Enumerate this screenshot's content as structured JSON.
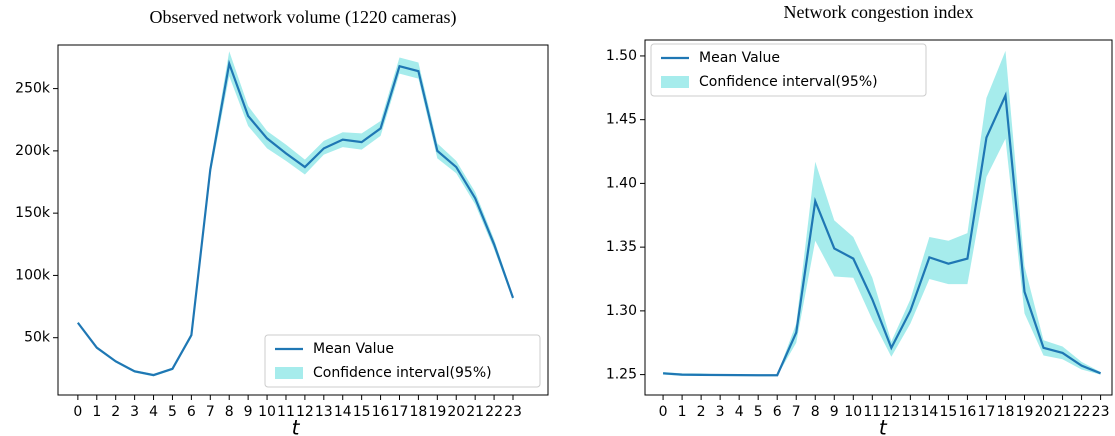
{
  "chart_data": [
    {
      "type": "line",
      "title": "Observed network volume (1220 cameras)",
      "x_label": "t",
      "x": [
        0,
        1,
        2,
        3,
        4,
        5,
        6,
        7,
        8,
        9,
        10,
        11,
        12,
        13,
        14,
        15,
        16,
        17,
        18,
        19,
        20,
        21,
        22,
        23
      ],
      "xticks": [
        0,
        1,
        2,
        3,
        4,
        5,
        6,
        7,
        8,
        9,
        10,
        11,
        12,
        13,
        14,
        15,
        16,
        17,
        18,
        19,
        20,
        21,
        22,
        23
      ],
      "xlim": [
        -1.05,
        24.85
      ],
      "ylim": [
        4000,
        285000
      ],
      "yticks": [
        {
          "value": 50000,
          "label": "50k"
        },
        {
          "value": 100000,
          "label": "100k"
        },
        {
          "value": 150000,
          "label": "150k"
        },
        {
          "value": 200000,
          "label": "200k"
        },
        {
          "value": 250000,
          "label": "250k"
        }
      ],
      "legend": "lower right",
      "series": [
        {
          "name": "Mean Value",
          "color": "#1f77b4",
          "values": [
            62000,
            42000,
            31000,
            23000,
            20000,
            25000,
            52000,
            185000,
            270000,
            228000,
            210000,
            198000,
            187000,
            202000,
            209000,
            207000,
            218000,
            268000,
            264000,
            200000,
            187000,
            162000,
            125000,
            82000
          ]
        },
        {
          "name": "Confidence interval(95%)",
          "color": "#a6ecec",
          "lower": [
            61000,
            41000,
            30000,
            22000,
            19000,
            24000,
            50000,
            180000,
            260000,
            220000,
            202000,
            192000,
            181000,
            197000,
            203000,
            201000,
            212000,
            262000,
            258000,
            194000,
            182000,
            157000,
            121000,
            80000
          ],
          "upper": [
            63000,
            43000,
            32000,
            24000,
            21000,
            26000,
            54000,
            190000,
            280000,
            236000,
            216000,
            205000,
            193000,
            208000,
            215000,
            214000,
            224000,
            275000,
            271000,
            206000,
            192000,
            167000,
            129000,
            84000
          ]
        }
      ]
    },
    {
      "type": "line",
      "title": "Network congestion index",
      "x_label": "t",
      "x": [
        0,
        1,
        2,
        3,
        4,
        5,
        6,
        7,
        8,
        9,
        10,
        11,
        12,
        13,
        14,
        15,
        16,
        17,
        18,
        19,
        20,
        21,
        22,
        23
      ],
      "xticks": [
        0,
        1,
        2,
        3,
        4,
        5,
        6,
        7,
        8,
        9,
        10,
        11,
        12,
        13,
        14,
        15,
        16,
        17,
        18,
        19,
        20,
        21,
        22,
        23
      ],
      "xlim": [
        -0.95,
        23.6
      ],
      "ylim": [
        1.234,
        1.5125
      ],
      "yticks": [
        {
          "value": 1.25,
          "label": "1.25"
        },
        {
          "value": 1.3,
          "label": "1.30"
        },
        {
          "value": 1.35,
          "label": "1.35"
        },
        {
          "value": 1.4,
          "label": "1.40"
        },
        {
          "value": 1.45,
          "label": "1.45"
        },
        {
          "value": 1.5,
          "label": "1.50"
        }
      ],
      "legend": "upper left",
      "series": [
        {
          "name": "Mean Value",
          "color": "#1f77b4",
          "values": [
            1.251,
            1.25,
            1.2498,
            1.2497,
            1.2496,
            1.2495,
            1.2495,
            1.283,
            1.386,
            1.349,
            1.341,
            1.309,
            1.271,
            1.3,
            1.342,
            1.337,
            1.341,
            1.436,
            1.469,
            1.315,
            1.271,
            1.267,
            1.257,
            1.251
          ]
        },
        {
          "name": "Confidence interval(95%)",
          "color": "#a6ecec",
          "lower": [
            1.25,
            1.249,
            1.249,
            1.249,
            1.249,
            1.249,
            1.249,
            1.275,
            1.355,
            1.327,
            1.326,
            1.293,
            1.264,
            1.29,
            1.325,
            1.321,
            1.321,
            1.405,
            1.435,
            1.298,
            1.265,
            1.262,
            1.254,
            1.25
          ],
          "upper": [
            1.252,
            1.251,
            1.251,
            1.25,
            1.25,
            1.25,
            1.25,
            1.29,
            1.417,
            1.371,
            1.358,
            1.326,
            1.276,
            1.309,
            1.358,
            1.355,
            1.361,
            1.467,
            1.504,
            1.335,
            1.277,
            1.272,
            1.26,
            1.252
          ]
        }
      ]
    }
  ]
}
